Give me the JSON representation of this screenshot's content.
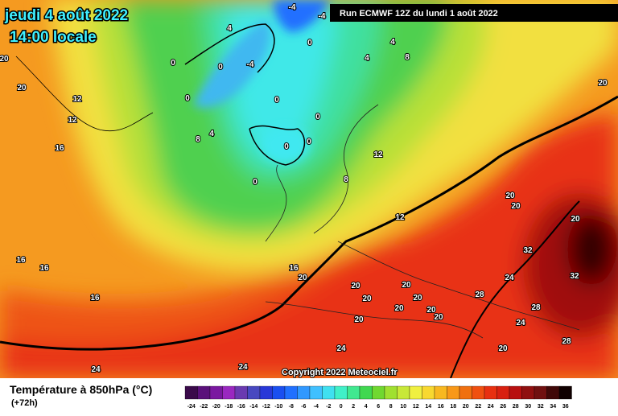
{
  "header": {
    "date": "jeudi 4 août 2022",
    "time": "14:00 locale",
    "run": "Run ECMWF 12Z du lundi 1 août 2022"
  },
  "copyright": "Copyright 2022 Meteociel.fr",
  "map_labels": [
    "-4",
    "-4",
    "4",
    "4",
    "0",
    "0",
    "0",
    "-4",
    "4",
    "8",
    "20",
    "20",
    "20",
    "12",
    "12",
    "0",
    "0",
    "0",
    "4",
    "8",
    "16",
    "0",
    "0",
    "12",
    "0",
    "8",
    "12",
    "20",
    "20",
    "20",
    "16",
    "16",
    "32",
    "16",
    "20",
    "24",
    "32",
    "20",
    "20",
    "20",
    "16",
    "20",
    "28",
    "20",
    "20",
    "28",
    "20",
    "20",
    "24",
    "28",
    "24",
    "20",
    "24",
    "24"
  ],
  "legend": {
    "title": "Température à 850hPa (°C)",
    "lead": "(+72h)",
    "values": [
      -24,
      -22,
      -20,
      -18,
      -16,
      -14,
      -12,
      -10,
      -8,
      -6,
      -4,
      -2,
      0,
      2,
      4,
      6,
      8,
      10,
      12,
      14,
      16,
      18,
      20,
      22,
      24,
      26,
      28,
      30,
      32,
      34,
      36
    ],
    "colors": [
      "#3a0a4a",
      "#5a107a",
      "#7a18a0",
      "#9a28c0",
      "#6a3ab0",
      "#4848c0",
      "#2838d8",
      "#1a4ff0",
      "#2070ff",
      "#3098ff",
      "#40c0ff",
      "#40e0f0",
      "#40f0c8",
      "#40e890",
      "#40d850",
      "#70d830",
      "#a0e030",
      "#c8e838",
      "#f0f040",
      "#f8d830",
      "#f8b820",
      "#f89818",
      "#f07010",
      "#f05010",
      "#e83010",
      "#d82010",
      "#b81010",
      "#901010",
      "#701010",
      "#400808",
      "#100000"
    ]
  }
}
